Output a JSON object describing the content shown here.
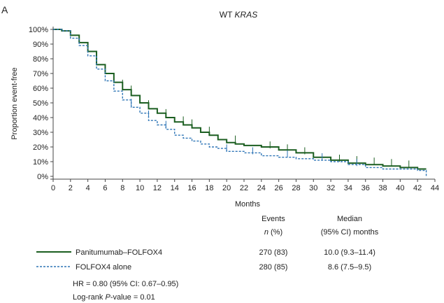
{
  "panel_label": "A",
  "title_prefix": "WT ",
  "title_italic": "KRAS",
  "table": {
    "header_events": "Events",
    "header_events_sub_n": "n",
    "header_events_sub_rest": " (%)",
    "header_median": "Median",
    "header_median_sub": "(95% CI) months",
    "rows": [
      {
        "name": "Panitumumab–FOLFOX4",
        "events": "270 (83)",
        "median": "10.0 (9.3–11.4)"
      },
      {
        "name": "FOLFOX4 alone",
        "events": "280 (85)",
        "median": "8.6 (7.5–9.5)"
      }
    ],
    "hr_text": "HR = 0.80 (95% CI: 0.67–0.95)",
    "logrank_prefix": "Log-rank ",
    "logrank_italic": "P",
    "logrank_suffix": "-value = 0.01"
  },
  "chart_data": {
    "type": "line",
    "xlabel": "Months",
    "ylabel": "Proportion event-free",
    "xlim": [
      0,
      44
    ],
    "ylim": [
      0,
      100
    ],
    "x_ticks": [
      0,
      2,
      4,
      6,
      8,
      10,
      12,
      14,
      16,
      18,
      20,
      22,
      24,
      26,
      28,
      30,
      32,
      34,
      36,
      38,
      40,
      42,
      44
    ],
    "y_ticks": [
      "0%",
      "10%",
      "20%",
      "30%",
      "40%",
      "50%",
      "60%",
      "70%",
      "80%",
      "90%",
      "100%"
    ],
    "y_tick_values": [
      0,
      10,
      20,
      30,
      40,
      50,
      60,
      70,
      80,
      90,
      100
    ],
    "colors": {
      "panitumumab": "#1b5e20",
      "folfox": "#2e75b6"
    },
    "series": [
      {
        "name": "Panitumumab–FOLFOX4",
        "style": "solid",
        "points": [
          [
            0,
            100
          ],
          [
            1,
            99
          ],
          [
            2,
            96
          ],
          [
            3,
            91
          ],
          [
            4,
            85
          ],
          [
            5,
            76
          ],
          [
            6,
            70
          ],
          [
            7,
            64
          ],
          [
            8,
            59
          ],
          [
            9,
            55
          ],
          [
            10,
            50
          ],
          [
            11,
            46
          ],
          [
            12,
            43
          ],
          [
            13,
            40
          ],
          [
            14,
            37
          ],
          [
            15,
            35
          ],
          [
            16,
            33
          ],
          [
            17,
            30
          ],
          [
            18,
            28
          ],
          [
            19,
            25
          ],
          [
            20,
            23
          ],
          [
            21,
            22
          ],
          [
            22,
            21
          ],
          [
            24,
            20
          ],
          [
            26,
            18
          ],
          [
            28,
            16
          ],
          [
            30,
            13
          ],
          [
            32,
            11
          ],
          [
            34,
            9
          ],
          [
            36,
            8
          ],
          [
            38,
            7
          ],
          [
            40,
            6
          ],
          [
            42,
            5
          ],
          [
            43,
            5
          ]
        ],
        "censors": [
          [
            5,
            78
          ],
          [
            8,
            61
          ],
          [
            9,
            57
          ],
          [
            11,
            47
          ],
          [
            13,
            41
          ],
          [
            15,
            36
          ],
          [
            16,
            34
          ],
          [
            18,
            29
          ],
          [
            21,
            23
          ],
          [
            25,
            19
          ],
          [
            27,
            17
          ],
          [
            29,
            15
          ],
          [
            33,
            10
          ],
          [
            35,
            9
          ],
          [
            37,
            8
          ],
          [
            39,
            7
          ],
          [
            41,
            6
          ]
        ]
      },
      {
        "name": "FOLFOX4 alone",
        "style": "dashed",
        "points": [
          [
            0,
            100
          ],
          [
            1,
            99
          ],
          [
            2,
            94
          ],
          [
            3,
            89
          ],
          [
            4,
            82
          ],
          [
            5,
            73
          ],
          [
            6,
            65
          ],
          [
            7,
            58
          ],
          [
            8,
            52
          ],
          [
            9,
            47
          ],
          [
            10,
            43
          ],
          [
            11,
            38
          ],
          [
            12,
            35
          ],
          [
            13,
            32
          ],
          [
            14,
            28
          ],
          [
            15,
            26
          ],
          [
            16,
            24
          ],
          [
            17,
            22
          ],
          [
            18,
            20
          ],
          [
            19,
            19
          ],
          [
            20,
            17
          ],
          [
            22,
            16
          ],
          [
            24,
            14
          ],
          [
            26,
            13
          ],
          [
            28,
            12
          ],
          [
            30,
            11
          ],
          [
            32,
            10
          ],
          [
            34,
            8
          ],
          [
            36,
            6
          ],
          [
            38,
            5
          ],
          [
            40,
            5
          ],
          [
            42,
            4
          ],
          [
            43,
            0
          ]
        ],
        "censors": [
          [
            9,
            48
          ],
          [
            11,
            40
          ],
          [
            13,
            33
          ],
          [
            20,
            17
          ],
          [
            23,
            15
          ],
          [
            27,
            13
          ],
          [
            31,
            11
          ],
          [
            35,
            7
          ]
        ]
      }
    ]
  }
}
